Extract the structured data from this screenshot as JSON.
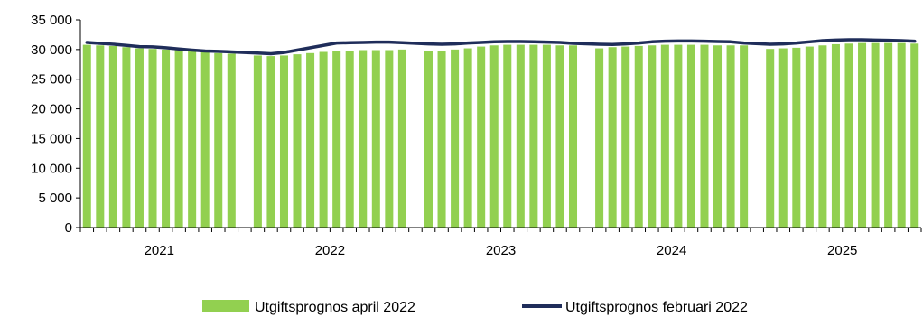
{
  "chart_data": {
    "type": "bar",
    "title": "",
    "xlabel": "",
    "ylabel": "",
    "ylim": [
      0,
      35000
    ],
    "yticks": [
      0,
      5000,
      10000,
      15000,
      20000,
      25000,
      30000,
      35000
    ],
    "ytick_labels": [
      "0",
      "5 000",
      "10 000",
      "15 000",
      "20 000",
      "25 000",
      "30 000",
      "35 000"
    ],
    "year_labels": [
      "2021",
      "2022",
      "2023",
      "2024",
      "2025"
    ],
    "months_per_year": 12,
    "grid": false,
    "legend_position": "bottom",
    "series": [
      {
        "name": "Utgiftsprognos april 2022",
        "type": "bar",
        "color": "#92d050",
        "values": [
          [
            30800,
            30700,
            30600,
            30400,
            30200,
            30100,
            30000,
            29900,
            29800,
            29600,
            29400,
            29300
          ],
          [
            29000,
            28900,
            29000,
            29200,
            29400,
            29600,
            29700,
            29800,
            29900,
            29900,
            29900,
            30000
          ],
          [
            29700,
            29800,
            30000,
            30200,
            30500,
            30700,
            30800,
            30800,
            30800,
            30800,
            30700,
            30700
          ],
          [
            30200,
            30400,
            30500,
            30600,
            30700,
            30800,
            30800,
            30800,
            30800,
            30700,
            30700,
            30700
          ],
          [
            30100,
            30200,
            30300,
            30500,
            30700,
            30900,
            31000,
            31100,
            31100,
            31100,
            31100,
            31000
          ]
        ]
      },
      {
        "name": "Utgiftsprognos februari 2022",
        "type": "line",
        "color": "#1f2d5a",
        "values": [
          31200,
          31050,
          30900,
          30700,
          30500,
          30450,
          30300,
          30100,
          29900,
          29750,
          29700,
          29600,
          29400,
          29300,
          29500,
          29900,
          30300,
          30700,
          31100,
          31150,
          31200,
          31250,
          31250,
          31150,
          30950,
          30900,
          30950,
          31100,
          31200,
          31300,
          31350,
          31350,
          31300,
          31250,
          31200,
          31050,
          30900,
          30850,
          30950,
          31100,
          31300,
          31400,
          31450,
          31450,
          31400,
          31350,
          31300,
          31100,
          30900,
          30950,
          31100,
          31300,
          31500,
          31600,
          31650,
          31650,
          31600,
          31550,
          31500,
          31400
        ]
      }
    ]
  }
}
